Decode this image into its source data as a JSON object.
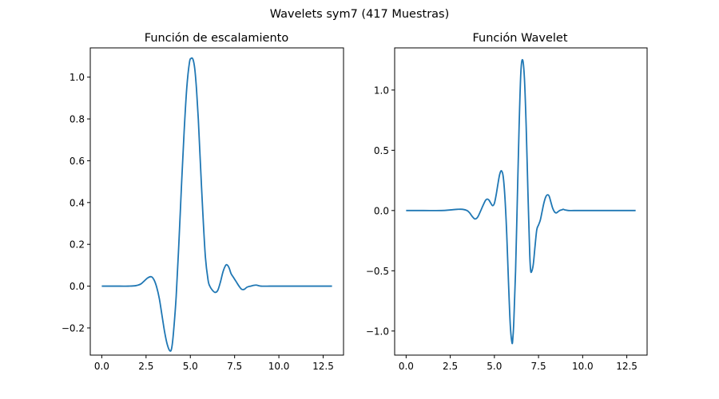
{
  "figure": {
    "suptitle": "Wavelets sym7 (417 Muestras)"
  },
  "chart_data": [
    {
      "type": "line",
      "title": "Función de escalamiento",
      "xlabel": "",
      "ylabel": "",
      "xlim": [
        -0.65,
        13.65
      ],
      "ylim": [
        -0.33,
        1.14
      ],
      "grid": false,
      "line_color": "#1f77b4",
      "xticks": [
        0.0,
        2.5,
        5.0,
        7.5,
        10.0,
        12.5
      ],
      "xtick_labels": [
        "0.0",
        "2.5",
        "5.0",
        "7.5",
        "10.0",
        "12.5"
      ],
      "yticks": [
        -0.2,
        0.0,
        0.2,
        0.4,
        0.6,
        0.8,
        1.0
      ],
      "ytick_labels": [
        "−0.2",
        "0.0",
        "0.2",
        "0.4",
        "0.6",
        "0.8",
        "1.0"
      ],
      "series": [
        {
          "x": [
            0.0,
            1.0,
            1.5,
            1.9,
            2.2,
            2.4,
            2.6,
            2.8,
            2.95,
            3.1,
            3.25,
            3.4,
            3.55,
            3.7,
            3.85,
            3.95,
            4.05,
            4.2,
            4.35,
            4.5,
            4.65,
            4.8,
            4.95,
            5.05,
            5.15,
            5.25,
            5.35,
            5.45,
            5.55,
            5.7,
            5.85,
            6.0,
            6.1,
            6.25,
            6.4,
            6.55,
            6.7,
            6.85,
            7.0,
            7.1,
            7.2,
            7.3,
            7.45,
            7.6,
            7.75,
            7.9,
            8.05,
            8.2,
            8.4,
            8.7,
            9.0,
            9.5,
            10.0,
            11.0,
            12.0,
            13.0
          ],
          "y": [
            0.0,
            0.0,
            0.0,
            0.002,
            0.01,
            0.025,
            0.04,
            0.045,
            0.03,
            -0.005,
            -0.06,
            -0.14,
            -0.22,
            -0.28,
            -0.31,
            -0.295,
            -0.22,
            -0.05,
            0.2,
            0.48,
            0.74,
            0.95,
            1.07,
            1.09,
            1.085,
            1.04,
            0.94,
            0.8,
            0.62,
            0.36,
            0.14,
            0.03,
            0.0,
            -0.02,
            -0.03,
            -0.02,
            0.02,
            0.07,
            0.1,
            0.1,
            0.085,
            0.06,
            0.04,
            0.02,
            0.0,
            -0.015,
            -0.015,
            -0.005,
            0.0,
            0.005,
            0.0,
            0.0,
            0.0,
            0.0,
            0.0,
            0.0
          ]
        }
      ]
    },
    {
      "type": "line",
      "title": "Función Wavelet",
      "xlabel": "",
      "ylabel": "",
      "xlim": [
        -0.65,
        13.65
      ],
      "ylim": [
        -1.2,
        1.35
      ],
      "grid": false,
      "line_color": "#1f77b4",
      "xticks": [
        0.0,
        2.5,
        5.0,
        7.5,
        10.0,
        12.5
      ],
      "xtick_labels": [
        "0.0",
        "2.5",
        "5.0",
        "7.5",
        "10.0",
        "12.5"
      ],
      "yticks": [
        -1.0,
        -0.5,
        0.0,
        0.5,
        1.0
      ],
      "ytick_labels": [
        "−1.0",
        "−0.5",
        "0.0",
        "0.5",
        "1.0"
      ],
      "series": [
        {
          "x": [
            0.0,
            1.0,
            2.0,
            2.5,
            2.9,
            3.2,
            3.45,
            3.6,
            3.75,
            3.9,
            4.05,
            4.2,
            4.35,
            4.5,
            4.6,
            4.7,
            4.8,
            4.9,
            5.0,
            5.1,
            5.2,
            5.3,
            5.4,
            5.5,
            5.6,
            5.7,
            5.8,
            5.9,
            6.0,
            6.05,
            6.1,
            6.2,
            6.3,
            6.4,
            6.5,
            6.6,
            6.7,
            6.8,
            6.9,
            7.0,
            7.05,
            7.1,
            7.2,
            7.3,
            7.4,
            7.5,
            7.6,
            7.7,
            7.8,
            7.9,
            8.0,
            8.1,
            8.2,
            8.3,
            8.4,
            8.5,
            8.6,
            8.7,
            8.8,
            8.9,
            9.0,
            9.2,
            9.5,
            10.0,
            11.0,
            12.0,
            13.0
          ],
          "y": [
            0.0,
            0.0,
            0.0,
            0.005,
            0.01,
            0.01,
            0.0,
            -0.02,
            -0.05,
            -0.07,
            -0.055,
            -0.01,
            0.04,
            0.085,
            0.095,
            0.085,
            0.06,
            0.04,
            0.06,
            0.13,
            0.22,
            0.3,
            0.33,
            0.28,
            0.1,
            -0.2,
            -0.6,
            -0.95,
            -1.1,
            -1.05,
            -0.92,
            -0.5,
            0.1,
            0.7,
            1.15,
            1.25,
            1.1,
            0.7,
            0.15,
            -0.35,
            -0.49,
            -0.51,
            -0.45,
            -0.3,
            -0.16,
            -0.12,
            -0.08,
            -0.01,
            0.06,
            0.11,
            0.13,
            0.12,
            0.07,
            0.02,
            -0.01,
            -0.02,
            -0.01,
            0.0,
            0.005,
            0.01,
            0.005,
            0.0,
            0.0,
            0.0,
            0.0,
            0.0,
            0.0
          ]
        }
      ]
    }
  ]
}
